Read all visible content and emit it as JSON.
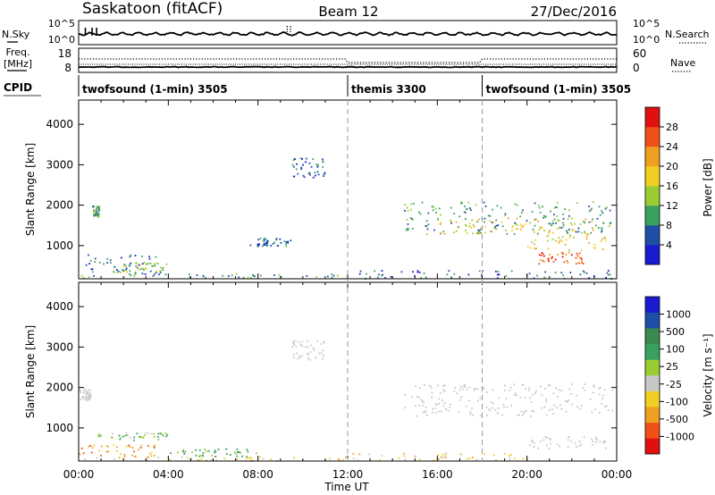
{
  "header": {
    "title": "Saskatoon (fitACF)",
    "beam": "Beam 12",
    "date": "27/Dec/2016"
  },
  "noise_panel": {
    "left_label": "N.Sky",
    "left_ticks": [
      "10^5",
      "10^0"
    ],
    "right_label": "N.Search",
    "right_ticks": [
      "10^5",
      "10^0"
    ]
  },
  "freq_panel": {
    "left_label_line1": "Freq.",
    "left_label_line2": "[MHz]",
    "left_ticks": [
      "18",
      "8"
    ],
    "right_label": "Nave",
    "right_ticks": [
      "60",
      "0"
    ]
  },
  "cpid": {
    "label": "CPID",
    "segments": [
      {
        "name": "twofsound (1-min) 3505",
        "start_hour": 0
      },
      {
        "name": "themis 3300",
        "start_hour": 12
      },
      {
        "name": "twofsound (1-min) 3505",
        "start_hour": 18
      }
    ]
  },
  "colors": {
    "power": [
      "#1a1ad0",
      "#1f4ea6",
      "#3aa060",
      "#9acd32",
      "#f0d020",
      "#f0a020",
      "#f05018",
      "#e01010"
    ],
    "velocity": [
      "#1a1ad0",
      "#1f4ea6",
      "#3a8a50",
      "#3aa060",
      "#9acd32",
      "#c8c8c8",
      "#f0d020",
      "#f0a020",
      "#f05018",
      "#e01010"
    ],
    "ground_scatter": "#c8c8c8"
  },
  "chart_data": {
    "type": "heatmap",
    "x_axis": {
      "label": "Time UT",
      "range_hours": [
        0,
        24
      ],
      "ticks": [
        "00:00",
        "04:00",
        "08:00",
        "12:00",
        "16:00",
        "20:00",
        "00:00"
      ]
    },
    "y_axis": {
      "label": "Slant Range [km]",
      "range_km": [
        180,
        4600
      ],
      "ticks": [
        "1000",
        "2000",
        "3000",
        "4000"
      ],
      "tick_values": [
        1000,
        2000,
        3000,
        4000
      ]
    },
    "mode_change_hours": [
      12,
      18
    ],
    "noise_series": {
      "sky_level": 0.55,
      "search_level": 0.6,
      "early_spikes_hours": [
        0.3,
        0.6,
        0.8
      ]
    },
    "freq_series": {
      "twofsound_top": "~12 MHz",
      "themis_top": "~10.5 MHz"
    },
    "panels": [
      {
        "name": "power",
        "colorbar_label": "Power [dB]",
        "colorbar_ticks": [
          "28",
          "24",
          "20",
          "16",
          "12",
          "8",
          "4"
        ],
        "colorbar_range": [
          0,
          32
        ],
        "regions": [
          {
            "t": [
              0.6,
              0.9
            ],
            "r": [
              1700,
              2000
            ],
            "level": 2
          },
          {
            "t": [
              0.3,
              4.0
            ],
            "r": [
              300,
              800
            ],
            "level": 1
          },
          {
            "t": [
              1.5,
              4.0
            ],
            "r": [
              350,
              600
            ],
            "level": 3
          },
          {
            "t": [
              0.0,
              12.0
            ],
            "r": [
              220,
              320
            ],
            "level": 2
          },
          {
            "t": [
              7.5,
              9.5
            ],
            "r": [
              1000,
              1200
            ],
            "level": 1
          },
          {
            "t": [
              9.5,
              11.0
            ],
            "r": [
              2700,
              3200
            ],
            "level": 1
          },
          {
            "t": [
              14.5,
              23.8
            ],
            "r": [
              1300,
              2100
            ],
            "level": 2
          },
          {
            "t": [
              16.0,
              23.0
            ],
            "r": [
              1300,
              1700
            ],
            "level": 4
          },
          {
            "t": [
              20.0,
              23.5
            ],
            "r": [
              900,
              1300
            ],
            "level": 4
          },
          {
            "t": [
              20.5,
              22.5
            ],
            "r": [
              550,
              850
            ],
            "level": 6
          },
          {
            "t": [
              12.0,
              24.0
            ],
            "r": [
              200,
              400
            ],
            "level": 1
          }
        ]
      },
      {
        "name": "velocity",
        "colorbar_label": "Velocity [m s⁻¹]",
        "colorbar_ticks": [
          "1000",
          "500",
          "100",
          "25",
          "-25",
          "-100",
          "-500",
          "-1000"
        ],
        "colorbar_range": [
          -1200,
          1200
        ],
        "regions": [
          {
            "t": [
              0.0,
              0.5
            ],
            "r": [
              1700,
              2000
            ],
            "level": "gs"
          },
          {
            "t": [
              0.5,
              4.0
            ],
            "r": [
              700,
              900
            ],
            "level": 4
          },
          {
            "t": [
              0.0,
              3.5
            ],
            "r": [
              300,
              600
            ],
            "level": 7
          },
          {
            "t": [
              0.0,
              12.0
            ],
            "r": [
              200,
              300
            ],
            "level": 6
          },
          {
            "t": [
              4.0,
              8.0
            ],
            "r": [
              300,
              500
            ],
            "level": 3
          },
          {
            "t": [
              9.5,
              11.0
            ],
            "r": [
              2700,
              3200
            ],
            "level": "gs"
          },
          {
            "t": [
              14.5,
              23.8
            ],
            "r": [
              1300,
              2100
            ],
            "level": "gs"
          },
          {
            "t": [
              20.0,
              23.5
            ],
            "r": [
              500,
              800
            ],
            "level": "gs"
          },
          {
            "t": [
              12.0,
              20.0
            ],
            "r": [
              200,
              400
            ],
            "level": 6
          }
        ]
      }
    ]
  }
}
